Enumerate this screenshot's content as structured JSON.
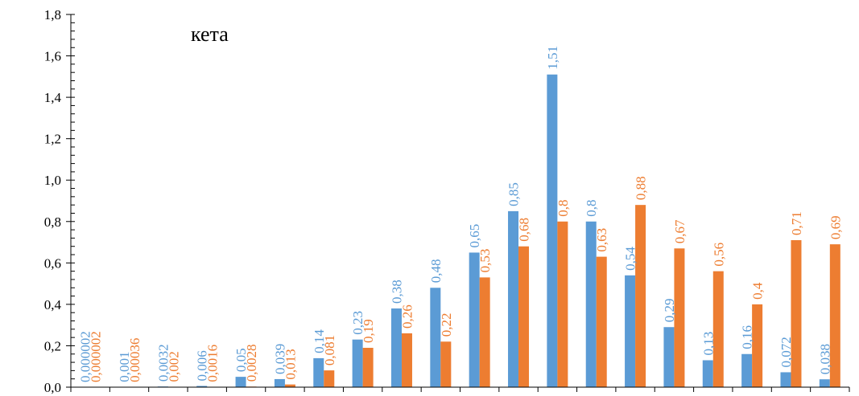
{
  "chart_data": {
    "type": "bar",
    "title": "кета",
    "xlabel": "",
    "ylabel": "",
    "ylim": [
      0,
      1.8
    ],
    "yticks": [
      0,
      0.2,
      0.4,
      0.6,
      0.8,
      1.0,
      1.2,
      1.4,
      1.6,
      1.8
    ],
    "ytick_labels": [
      "0,0",
      "0,2",
      "0,4",
      "0,6",
      "0,8",
      "1,0",
      "1,2",
      "1,4",
      "1,6",
      "1,8"
    ],
    "grid": false,
    "legend": "none",
    "categories": [
      "",
      "",
      "",
      "",
      "",
      "",
      "",
      "",
      "",
      "",
      "",
      "",
      "",
      "",
      "",
      "",
      "",
      "",
      "",
      ""
    ],
    "series": [
      {
        "color": "#5b9bd5",
        "values": [
          2e-06,
          0.001,
          0.0032,
          0.006,
          0.05,
          0.039,
          0.14,
          0.23,
          0.38,
          0.48,
          0.65,
          0.85,
          1.51,
          0.8,
          0.54,
          0.29,
          0.13,
          0.16,
          0.072,
          0.038
        ],
        "labels": [
          "0,000002",
          "0,001",
          "0,0032",
          "0,006",
          "0,05",
          "0,039",
          "0,14",
          "0,23",
          "0,38",
          "0,48",
          "0,65",
          "0,85",
          "1,51",
          "0,8",
          "0,54",
          "0,29",
          "0,13",
          "0,16",
          "0,072",
          "0,038"
        ]
      },
      {
        "color": "#ed7d31",
        "values": [
          2e-06,
          0.00036,
          0.002,
          0.0016,
          0.0028,
          0.013,
          0.081,
          0.19,
          0.26,
          0.22,
          0.53,
          0.68,
          0.8,
          0.63,
          0.88,
          0.67,
          0.56,
          0.4,
          0.71,
          0.69
        ],
        "labels": [
          "0,000002",
          "0,00036",
          "0,002",
          "0,0016",
          "0,0028",
          "0,013",
          "0,081",
          "0,19",
          "0,26",
          "0,22",
          "0,53",
          "0,68",
          "0,8",
          "0,63",
          "0,88",
          "0,67",
          "0,56",
          "0,4",
          "0,71",
          "0,69"
        ]
      }
    ]
  }
}
